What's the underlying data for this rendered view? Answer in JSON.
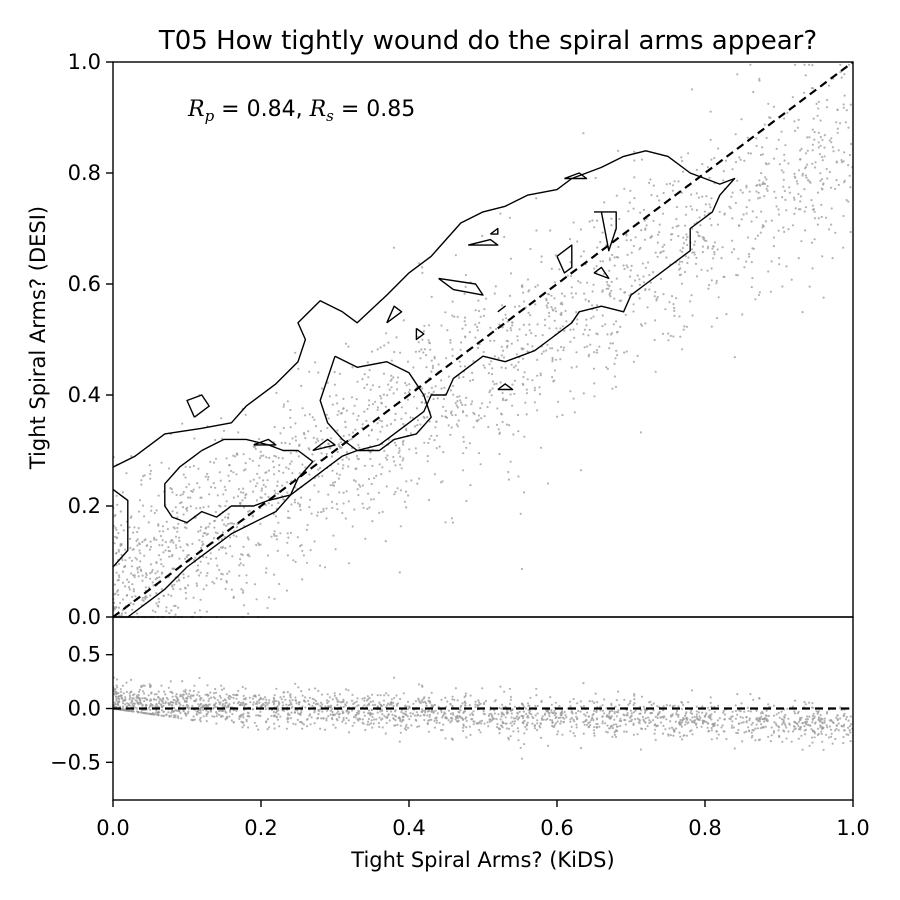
{
  "chart_data": [
    {
      "type": "scatter",
      "panel": "main",
      "title": "T05 How tightly wound do the spiral arms appear?",
      "xlabel": "",
      "ylabel": "Tight Spiral Arms? (DESI)",
      "xlim": [
        0.0,
        1.0
      ],
      "ylim": [
        0.0,
        1.0
      ],
      "yticks": [
        "0.0",
        "0.2",
        "0.4",
        "0.6",
        "0.8",
        "1.0"
      ],
      "yticks_values": [
        0.0,
        0.2,
        0.4,
        0.6,
        0.8,
        1.0
      ],
      "annotation": {
        "rp_symbol": "R",
        "rp_sub": "p",
        "rp_value": " = 0.84, ",
        "rs_symbol": "R",
        "rs_sub": "s",
        "rs_value": " = 0.85"
      },
      "reference_line": {
        "style": "dashed",
        "points": [
          [
            0.0,
            0.0
          ],
          [
            1.0,
            1.0
          ]
        ]
      },
      "trend": {
        "intercept": 0.05,
        "slope": 0.8,
        "scatter_sd": 0.09
      },
      "n_points": 2200,
      "point_color": "#999999",
      "contours": [
        [
          [
            0.0,
            0.23
          ],
          [
            0.02,
            0.21
          ],
          [
            0.02,
            0.12
          ],
          [
            0.0,
            0.09
          ]
        ],
        [
          [
            0.0,
            0.27
          ],
          [
            0.03,
            0.29
          ],
          [
            0.07,
            0.33
          ],
          [
            0.12,
            0.34
          ],
          [
            0.16,
            0.35
          ],
          [
            0.18,
            0.38
          ],
          [
            0.22,
            0.42
          ],
          [
            0.25,
            0.46
          ],
          [
            0.26,
            0.5
          ],
          [
            0.25,
            0.53
          ],
          [
            0.28,
            0.57
          ],
          [
            0.31,
            0.55
          ],
          [
            0.33,
            0.53
          ],
          [
            0.37,
            0.58
          ],
          [
            0.4,
            0.62
          ],
          [
            0.43,
            0.65
          ],
          [
            0.45,
            0.68
          ],
          [
            0.47,
            0.71
          ],
          [
            0.5,
            0.73
          ],
          [
            0.53,
            0.74
          ],
          [
            0.56,
            0.76
          ],
          [
            0.6,
            0.77
          ],
          [
            0.62,
            0.79
          ],
          [
            0.66,
            0.81
          ],
          [
            0.69,
            0.83
          ],
          [
            0.72,
            0.84
          ],
          [
            0.75,
            0.83
          ],
          [
            0.78,
            0.8
          ],
          [
            0.82,
            0.78
          ],
          [
            0.84,
            0.79
          ],
          [
            0.82,
            0.76
          ],
          [
            0.81,
            0.73
          ],
          [
            0.78,
            0.7
          ],
          [
            0.78,
            0.66
          ],
          [
            0.76,
            0.64
          ],
          [
            0.74,
            0.62
          ],
          [
            0.72,
            0.6
          ],
          [
            0.7,
            0.58
          ],
          [
            0.69,
            0.55
          ],
          [
            0.66,
            0.56
          ],
          [
            0.63,
            0.55
          ],
          [
            0.62,
            0.53
          ],
          [
            0.59,
            0.5
          ],
          [
            0.57,
            0.48
          ],
          [
            0.55,
            0.47
          ],
          [
            0.53,
            0.46
          ],
          [
            0.5,
            0.47
          ],
          [
            0.48,
            0.45
          ],
          [
            0.46,
            0.43
          ],
          [
            0.45,
            0.4
          ],
          [
            0.43,
            0.4
          ],
          [
            0.42,
            0.37
          ],
          [
            0.4,
            0.35
          ],
          [
            0.38,
            0.33
          ],
          [
            0.36,
            0.31
          ],
          [
            0.33,
            0.3
          ],
          [
            0.31,
            0.29
          ],
          [
            0.29,
            0.27
          ],
          [
            0.27,
            0.25
          ],
          [
            0.24,
            0.22
          ],
          [
            0.22,
            0.19
          ],
          [
            0.19,
            0.17
          ],
          [
            0.16,
            0.15
          ],
          [
            0.13,
            0.12
          ],
          [
            0.1,
            0.09
          ],
          [
            0.07,
            0.05
          ],
          [
            0.05,
            0.03
          ],
          [
            0.03,
            0.01
          ],
          [
            0.02,
            0.0
          ]
        ],
        [
          [
            0.12,
            0.3
          ],
          [
            0.15,
            0.32
          ],
          [
            0.18,
            0.32
          ],
          [
            0.21,
            0.31
          ],
          [
            0.23,
            0.3
          ],
          [
            0.25,
            0.3
          ],
          [
            0.27,
            0.28
          ],
          [
            0.25,
            0.25
          ],
          [
            0.24,
            0.22
          ],
          [
            0.21,
            0.21
          ],
          [
            0.19,
            0.2
          ],
          [
            0.16,
            0.2
          ],
          [
            0.14,
            0.18
          ],
          [
            0.12,
            0.19
          ],
          [
            0.1,
            0.17
          ],
          [
            0.08,
            0.18
          ],
          [
            0.07,
            0.2
          ],
          [
            0.07,
            0.24
          ],
          [
            0.09,
            0.27
          ],
          [
            0.11,
            0.29
          ],
          [
            0.12,
            0.3
          ]
        ],
        [
          [
            0.3,
            0.47
          ],
          [
            0.33,
            0.45
          ],
          [
            0.37,
            0.46
          ],
          [
            0.4,
            0.44
          ],
          [
            0.42,
            0.4
          ],
          [
            0.43,
            0.36
          ],
          [
            0.41,
            0.33
          ],
          [
            0.38,
            0.32
          ],
          [
            0.36,
            0.3
          ],
          [
            0.33,
            0.3
          ],
          [
            0.31,
            0.32
          ],
          [
            0.29,
            0.35
          ],
          [
            0.28,
            0.39
          ],
          [
            0.29,
            0.43
          ],
          [
            0.3,
            0.47
          ]
        ],
        [
          [
            0.11,
            0.36
          ],
          [
            0.13,
            0.38
          ],
          [
            0.12,
            0.4
          ],
          [
            0.1,
            0.39
          ],
          [
            0.11,
            0.36
          ]
        ],
        [
          [
            0.19,
            0.31
          ],
          [
            0.22,
            0.31
          ],
          [
            0.21,
            0.32
          ],
          [
            0.19,
            0.31
          ]
        ],
        [
          [
            0.27,
            0.3
          ],
          [
            0.3,
            0.31
          ],
          [
            0.29,
            0.32
          ],
          [
            0.27,
            0.3
          ]
        ],
        [
          [
            0.37,
            0.53
          ],
          [
            0.39,
            0.55
          ],
          [
            0.38,
            0.56
          ],
          [
            0.37,
            0.53
          ]
        ],
        [
          [
            0.41,
            0.52
          ],
          [
            0.42,
            0.51
          ],
          [
            0.41,
            0.5
          ],
          [
            0.41,
            0.52
          ]
        ],
        [
          [
            0.44,
            0.61
          ],
          [
            0.49,
            0.6
          ],
          [
            0.5,
            0.58
          ],
          [
            0.46,
            0.59
          ],
          [
            0.44,
            0.61
          ]
        ],
        [
          [
            0.48,
            0.67
          ],
          [
            0.51,
            0.68
          ],
          [
            0.52,
            0.67
          ],
          [
            0.48,
            0.67
          ]
        ],
        [
          [
            0.51,
            0.69
          ],
          [
            0.52,
            0.7
          ],
          [
            0.52,
            0.69
          ],
          [
            0.51,
            0.69
          ]
        ],
        [
          [
            0.52,
            0.55
          ],
          [
            0.53,
            0.56
          ],
          [
            0.52,
            0.55
          ],
          [
            0.52,
            0.55
          ]
        ],
        [
          [
            0.52,
            0.41
          ],
          [
            0.53,
            0.42
          ],
          [
            0.54,
            0.41
          ],
          [
            0.52,
            0.41
          ]
        ],
        [
          [
            0.6,
            0.65
          ],
          [
            0.62,
            0.67
          ],
          [
            0.62,
            0.63
          ],
          [
            0.61,
            0.62
          ],
          [
            0.6,
            0.65
          ]
        ],
        [
          [
            0.61,
            0.79
          ],
          [
            0.63,
            0.8
          ],
          [
            0.64,
            0.79
          ],
          [
            0.61,
            0.79
          ]
        ],
        [
          [
            0.65,
            0.73
          ],
          [
            0.68,
            0.73
          ],
          [
            0.68,
            0.7
          ],
          [
            0.67,
            0.66
          ],
          [
            0.66,
            0.73
          ],
          [
            0.65,
            0.73
          ]
        ],
        [
          [
            0.65,
            0.62
          ],
          [
            0.66,
            0.63
          ],
          [
            0.67,
            0.61
          ],
          [
            0.65,
            0.62
          ]
        ]
      ]
    },
    {
      "type": "scatter",
      "panel": "residual",
      "xlabel": "Tight Spiral Arms? (KiDS)",
      "ylabel": "",
      "xlim": [
        0.0,
        1.0
      ],
      "ylim": [
        -0.85,
        0.85
      ],
      "xticks": [
        "0.0",
        "0.2",
        "0.4",
        "0.6",
        "0.8",
        "1.0"
      ],
      "xticks_values": [
        0.0,
        0.2,
        0.4,
        0.6,
        0.8,
        1.0
      ],
      "yticks": [
        "−0.5",
        "0.0",
        "0.5"
      ],
      "yticks_values": [
        -0.5,
        0.0,
        0.5
      ],
      "reference_line": {
        "style": "dashed",
        "y": 0.0
      },
      "n_points": 2200,
      "point_color": "#999999"
    }
  ]
}
